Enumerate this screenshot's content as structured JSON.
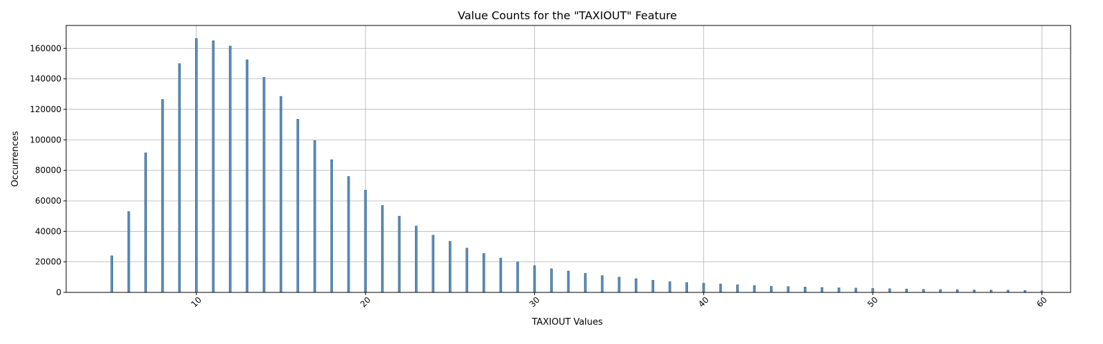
{
  "chart_data": {
    "type": "bar",
    "title": "Value Counts for the \"TAXIOUT\" Feature",
    "xlabel": "TAXIOUT Values",
    "ylabel": "Occurrences",
    "xlim": [
      2.3,
      61.7
    ],
    "ylim": [
      0,
      175000
    ],
    "xticks": [
      10,
      20,
      30,
      40,
      50,
      60
    ],
    "yticks": [
      0,
      20000,
      40000,
      60000,
      80000,
      100000,
      120000,
      140000,
      160000
    ],
    "grid": true,
    "x": [
      5,
      6,
      7,
      8,
      9,
      10,
      11,
      12,
      13,
      14,
      15,
      16,
      17,
      18,
      19,
      20,
      21,
      22,
      23,
      24,
      25,
      26,
      27,
      28,
      29,
      30,
      31,
      32,
      33,
      34,
      35,
      36,
      37,
      38,
      39,
      40,
      41,
      42,
      43,
      44,
      45,
      46,
      47,
      48,
      49,
      50,
      51,
      52,
      53,
      54,
      55,
      56,
      57,
      58,
      59,
      60
    ],
    "values": [
      24000,
      53000,
      91500,
      126500,
      150000,
      166500,
      165000,
      161500,
      152500,
      141000,
      128500,
      113500,
      99500,
      87000,
      76000,
      67000,
      57000,
      50000,
      43500,
      37500,
      33500,
      29000,
      25500,
      22500,
      20000,
      17500,
      15500,
      14000,
      12500,
      11000,
      10000,
      9000,
      8000,
      7000,
      6500,
      6000,
      5500,
      5000,
      4500,
      4000,
      3800,
      3500,
      3200,
      3000,
      2800,
      2600,
      2400,
      2200,
      2000,
      1900,
      1800,
      1600,
      1500,
      1400,
      1300,
      1000
    ]
  }
}
